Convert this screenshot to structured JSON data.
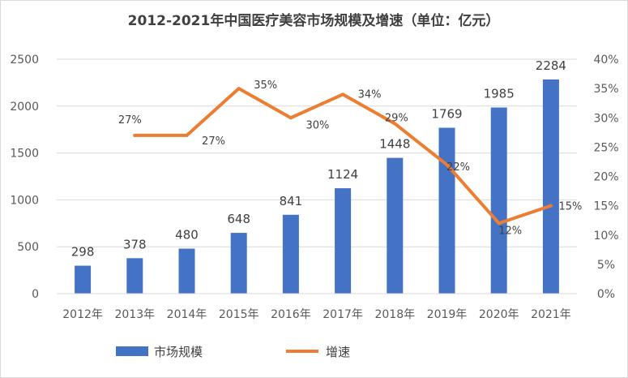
{
  "chart_data": {
    "type": "bar",
    "title": "2012-2021年中国医疗美容市场规模及增速（单位：亿元）",
    "categories": [
      "2012年",
      "2013年",
      "2014年",
      "2015年",
      "2016年",
      "2017年",
      "2018年",
      "2019年",
      "2020年",
      "2021年"
    ],
    "series": [
      {
        "name": "市场规模",
        "type": "bar",
        "axis": "left",
        "color": "#4472C4",
        "values": [
          298,
          378,
          480,
          648,
          841,
          1124,
          1448,
          1769,
          1985,
          2284
        ],
        "labels": [
          "298",
          "378",
          "480",
          "648",
          "841",
          "1124",
          "1448",
          "1769",
          "1985",
          "2284"
        ]
      },
      {
        "name": "增速",
        "type": "line",
        "axis": "right",
        "color": "#ED7D31",
        "values": [
          null,
          27,
          27,
          35,
          30,
          34,
          29,
          22,
          12,
          15
        ],
        "labels": [
          null,
          "27%",
          "27%",
          "35%",
          "30%",
          "34%",
          "29%",
          "22%",
          "12%",
          "15%"
        ]
      }
    ],
    "y_left": {
      "ylim": [
        0,
        2500
      ],
      "ticks": [
        "0",
        "500",
        "1000",
        "1500",
        "2000",
        "2500"
      ]
    },
    "y_right": {
      "ylim": [
        0,
        40
      ],
      "ticks": [
        "0%",
        "5%",
        "10%",
        "15%",
        "20%",
        "25%",
        "30%",
        "35%",
        "40%"
      ]
    },
    "grid": true,
    "legend_position": "bottom"
  }
}
